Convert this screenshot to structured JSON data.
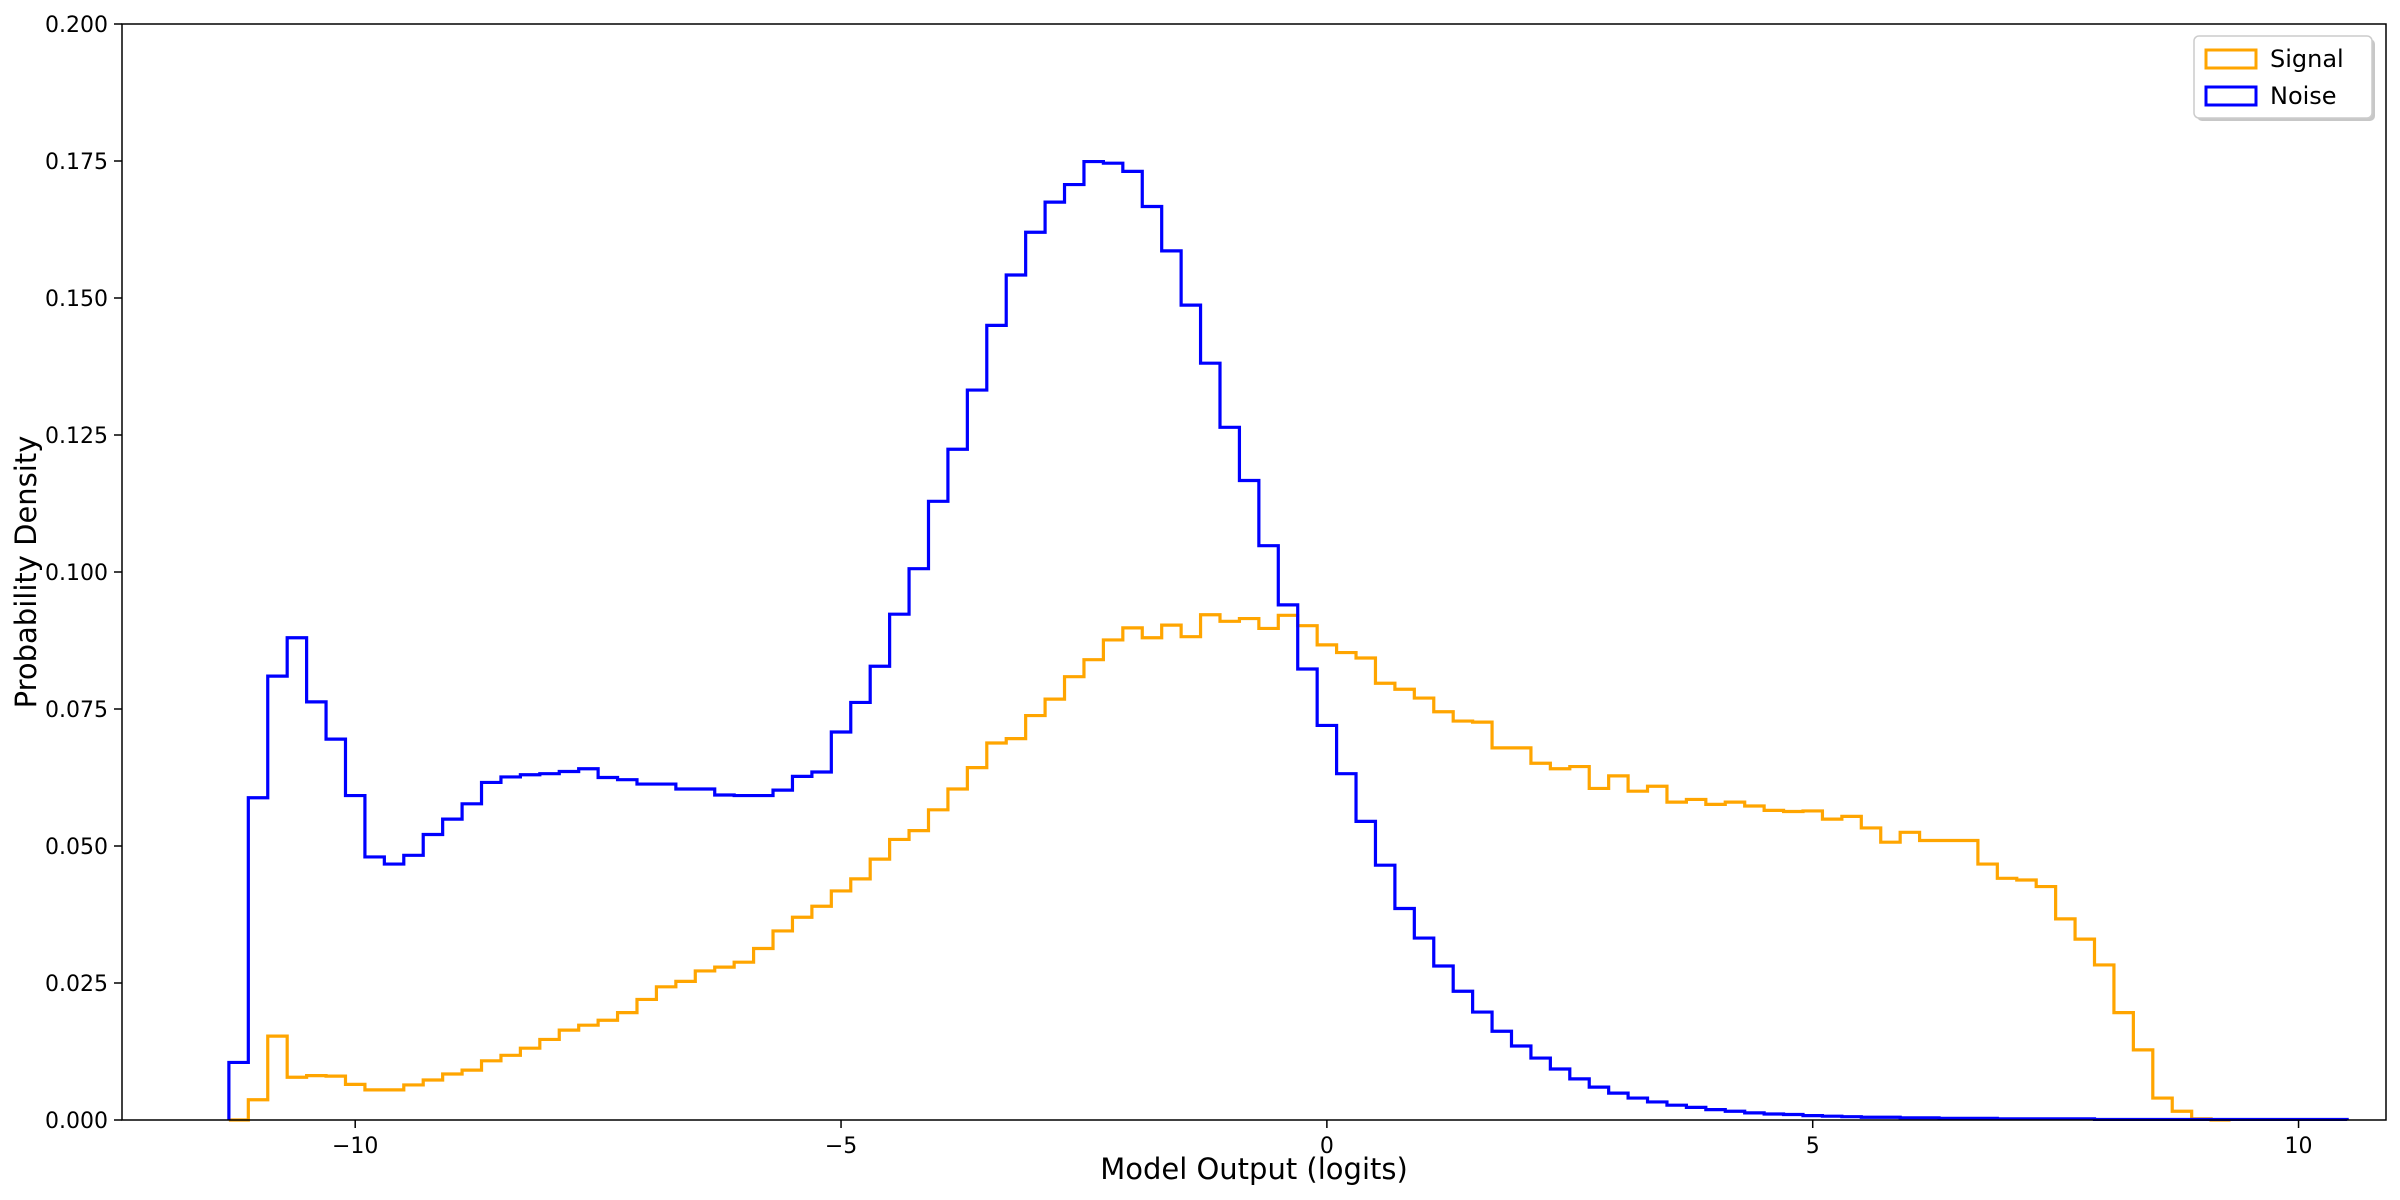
{
  "chart_data": {
    "type": "histogram-step",
    "xlabel": "Model Output (logits)",
    "ylabel": "Probability Density",
    "xlim": [
      -12.4,
      10.9
    ],
    "ylim": [
      0,
      0.2
    ],
    "xticks": [
      -10,
      -5,
      0,
      5,
      10
    ],
    "xtick_labels": [
      "−10",
      "−5",
      "0",
      "5",
      "10"
    ],
    "yticks": [
      0,
      0.025,
      0.05,
      0.075,
      0.1,
      0.125,
      0.15,
      0.175,
      0.2
    ],
    "ytick_labels": [
      "0.000",
      "0.025",
      "0.050",
      "0.075",
      "0.100",
      "0.125",
      "0.150",
      "0.175",
      "0.200"
    ],
    "grid": false,
    "legend_position": "top-right",
    "colors": {
      "Signal": "#FFA500",
      "Noise": "#0000FF"
    },
    "bins": {
      "start": -11.3,
      "width": 0.2
    },
    "series": [
      {
        "name": "Noise",
        "values": [
          0.0105,
          0.0588,
          0.081,
          0.088,
          0.0763,
          0.0695,
          0.0592,
          0.048,
          0.0467,
          0.0483,
          0.0521,
          0.0549,
          0.0577,
          0.0616,
          0.0626,
          0.063,
          0.0632,
          0.0636,
          0.0641,
          0.0625,
          0.0621,
          0.0613,
          0.0613,
          0.0604,
          0.0604,
          0.0593,
          0.0592,
          0.0592,
          0.0602,
          0.0627,
          0.0635,
          0.0708,
          0.0762,
          0.0828,
          0.0923,
          0.1006,
          0.1129,
          0.1224,
          0.1332,
          0.145,
          0.1542,
          0.162,
          0.1675,
          0.1707,
          0.1749,
          0.1746,
          0.1731,
          0.1667,
          0.1586,
          0.1487,
          0.1381,
          0.1264,
          0.1167,
          0.1048,
          0.094,
          0.0823,
          0.072,
          0.0632,
          0.0545,
          0.0465,
          0.0386,
          0.0332,
          0.0281,
          0.0235,
          0.0197,
          0.0162,
          0.0135,
          0.0113,
          0.0093,
          0.0075,
          0.006,
          0.0049,
          0.004,
          0.0033,
          0.0027,
          0.0023,
          0.0019,
          0.0016,
          0.0013,
          0.0011,
          0.001,
          0.0008,
          0.0007,
          0.0006,
          0.0005,
          0.0005,
          0.0004,
          0.0004,
          0.0003,
          0.0003,
          0.0003,
          0.0002,
          0.0002,
          0.0002,
          0.0002,
          0.0002,
          0.0001,
          0.0001,
          0.0001,
          0.0001,
          0.0001,
          0.0001,
          0.0001,
          0.0001,
          0.0001,
          0.0001,
          0.0001,
          0.0001,
          0.0001
        ]
      },
      {
        "name": "Signal",
        "values": [
          0.0,
          0.0037,
          0.0153,
          0.0078,
          0.0081,
          0.008,
          0.0065,
          0.0055,
          0.0055,
          0.0064,
          0.0073,
          0.0084,
          0.0091,
          0.0108,
          0.0118,
          0.0131,
          0.0147,
          0.0164,
          0.0173,
          0.0182,
          0.0196,
          0.022,
          0.0243,
          0.0253,
          0.0272,
          0.0279,
          0.0288,
          0.0313,
          0.0345,
          0.037,
          0.039,
          0.0418,
          0.044,
          0.0476,
          0.0512,
          0.0528,
          0.0566,
          0.0604,
          0.0643,
          0.0688,
          0.0696,
          0.0738,
          0.0768,
          0.0809,
          0.084,
          0.0876,
          0.0898,
          0.088,
          0.0903,
          0.0882,
          0.0922,
          0.091,
          0.0915,
          0.0897,
          0.0921,
          0.0902,
          0.0867,
          0.0853,
          0.0843,
          0.0797,
          0.0786,
          0.077,
          0.0745,
          0.0728,
          0.0726,
          0.0679,
          0.0679,
          0.0651,
          0.0641,
          0.0645,
          0.0605,
          0.0628,
          0.06,
          0.0609,
          0.058,
          0.0585,
          0.0576,
          0.058,
          0.0573,
          0.0565,
          0.0563,
          0.0564,
          0.0549,
          0.0554,
          0.0533,
          0.0507,
          0.0525,
          0.051,
          0.051,
          0.051,
          0.0467,
          0.0441,
          0.0438,
          0.0426,
          0.0367,
          0.033,
          0.0283,
          0.0196,
          0.0128,
          0.004,
          0.0016,
          0.0002,
          0.0
        ]
      }
    ]
  }
}
